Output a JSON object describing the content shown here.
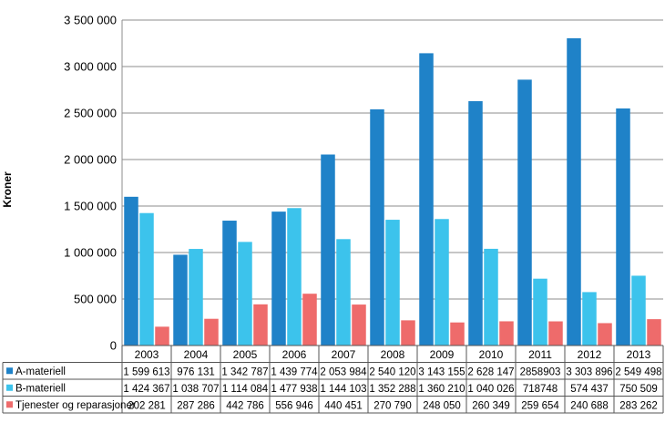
{
  "chart_data": {
    "type": "bar",
    "ylabel": "Kroner",
    "ylim": [
      0,
      3500000
    ],
    "y_ticks": [
      "0",
      "500 000",
      "1 000 000",
      "1 500 000",
      "2 000 000",
      "2 500 000",
      "3 000 000",
      "3 500 000"
    ],
    "grid": true,
    "legend": "data table",
    "categories": [
      "2003",
      "2004",
      "2005",
      "2006",
      "2007",
      "2008",
      "2009",
      "2010",
      "2011",
      "2012",
      "2013"
    ],
    "series": [
      {
        "name": "A-materiell",
        "color": "#1f82c8",
        "values": [
          1599613,
          976131,
          1342787,
          1439774,
          2053984,
          2540120,
          3143155,
          2628147,
          2858903,
          3303896,
          2549498
        ],
        "labels": [
          "1 599 613",
          "976 131",
          "1 342 787",
          "1 439 774",
          "2 053 984",
          "2 540 120",
          "3 143 155",
          "2 628 147",
          "2858903",
          "3 303 896",
          "2 549 498"
        ]
      },
      {
        "name": "B-materiell",
        "color": "#3cc3ec",
        "values": [
          1424367,
          1038707,
          1114084,
          1477938,
          1144103,
          1352288,
          1360210,
          1040026,
          718748,
          574437,
          750509
        ],
        "labels": [
          "1 424 367",
          "1 038 707",
          "1 114 084",
          "1 477 938",
          "1 144 103",
          "1 352 288",
          "1 360 210",
          "1 040 026",
          "718748",
          "574 437",
          "750 509"
        ]
      },
      {
        "name": "Tjenester og reparasjoner",
        "color": "#ee6b6b",
        "values": [
          202281,
          287286,
          442786,
          556946,
          440451,
          270790,
          248050,
          260349,
          259654,
          240688,
          283262
        ],
        "labels": [
          "202 281",
          "287 286",
          "442 786",
          "556 946",
          "440 451",
          "270 790",
          "248 050",
          "260 349",
          "259 654",
          "240 688",
          "283 262"
        ]
      }
    ]
  }
}
